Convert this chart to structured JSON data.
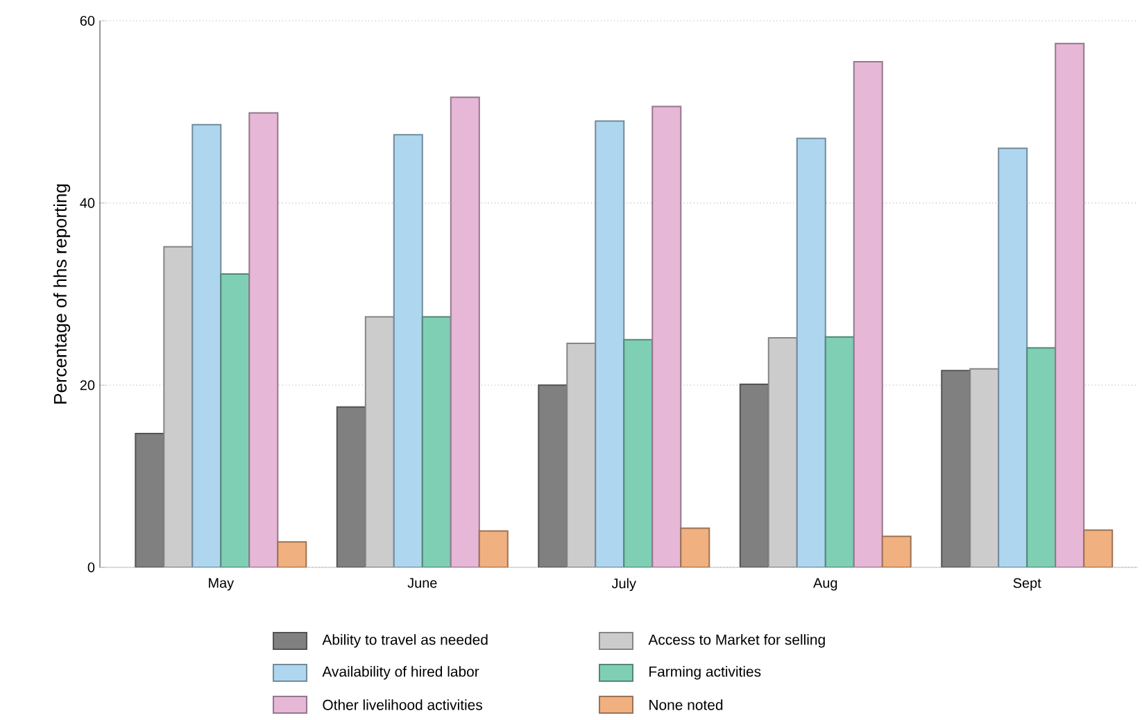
{
  "chart_data": {
    "type": "bar",
    "ylabel": "Percentage of hhs reporting",
    "categories": [
      "May",
      "June",
      "July",
      "Aug",
      "Sept"
    ],
    "series": [
      {
        "name": "Ability to travel as needed",
        "color": "#808080",
        "values": [
          14.7,
          17.6,
          20.0,
          20.1,
          21.6
        ]
      },
      {
        "name": "Access to Market for selling",
        "color": "#cccccc",
        "values": [
          35.2,
          27.5,
          24.6,
          25.2,
          21.8
        ]
      },
      {
        "name": "Availability of hired labor",
        "color": "#aed6ef",
        "values": [
          48.6,
          47.5,
          49.0,
          47.1,
          46.0
        ]
      },
      {
        "name": "Farming activities",
        "color": "#7fcfb5",
        "values": [
          32.2,
          27.5,
          25.0,
          25.3,
          24.1
        ]
      },
      {
        "name": "Other livelihood activities",
        "color": "#e6b7d6",
        "values": [
          49.9,
          51.6,
          50.6,
          55.5,
          57.5
        ]
      },
      {
        "name": "None noted",
        "color": "#f0b07f",
        "values": [
          2.8,
          4.0,
          4.3,
          3.4,
          4.1
        ]
      }
    ],
    "ylim": [
      0,
      60
    ],
    "yticks": [
      0,
      20,
      40,
      60
    ],
    "grid": "y",
    "legend": "bottom"
  }
}
